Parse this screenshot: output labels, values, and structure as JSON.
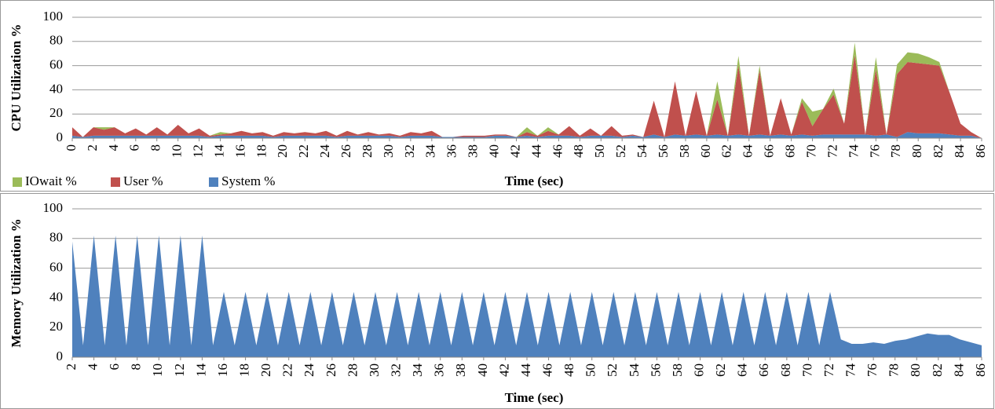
{
  "chart_data": [
    {
      "type": "area",
      "stacked": true,
      "y_label": "CPU Utilization %",
      "x_label": "Time (sec)",
      "legend": "bottom-left",
      "x": [
        0,
        1,
        2,
        3,
        4,
        5,
        6,
        7,
        8,
        9,
        10,
        11,
        12,
        13,
        14,
        15,
        16,
        17,
        18,
        19,
        20,
        21,
        22,
        23,
        24,
        25,
        26,
        27,
        28,
        29,
        30,
        31,
        32,
        33,
        34,
        35,
        36,
        37,
        38,
        39,
        40,
        41,
        42,
        43,
        44,
        45,
        46,
        47,
        48,
        49,
        50,
        51,
        52,
        53,
        54,
        55,
        56,
        57,
        58,
        59,
        60,
        61,
        62,
        63,
        64,
        65,
        66,
        67,
        68,
        69,
        70,
        71,
        72,
        73,
        74,
        75,
        76,
        77,
        78,
        79,
        80,
        81,
        82,
        83,
        84,
        85,
        86
      ],
      "series": [
        {
          "name": "System %",
          "color": "#4f81bd",
          "values": [
            2,
            1,
            2,
            2,
            2,
            2,
            2,
            2,
            2,
            2,
            2,
            2,
            2,
            1,
            2,
            2,
            2,
            2,
            2,
            1,
            2,
            2,
            2,
            2,
            2,
            1,
            2,
            2,
            2,
            2,
            2,
            1,
            2,
            2,
            2,
            1,
            1,
            1,
            1,
            1,
            2,
            2,
            1,
            2,
            1,
            2,
            2,
            2,
            1,
            2,
            2,
            2,
            1,
            2,
            1,
            3,
            1,
            3,
            2,
            3,
            2,
            3,
            2,
            3,
            2,
            3,
            2,
            3,
            2,
            3,
            2,
            3,
            3,
            3,
            3,
            3,
            2,
            3,
            1,
            5,
            4,
            4,
            4,
            3,
            2,
            2,
            0
          ]
        },
        {
          "name": "User %",
          "color": "#c0504d",
          "values": [
            7,
            0,
            7,
            5,
            7,
            2,
            6,
            1,
            7,
            1,
            9,
            2,
            6,
            1,
            1,
            2,
            4,
            2,
            3,
            1,
            3,
            2,
            3,
            2,
            4,
            1,
            4,
            1,
            3,
            1,
            2,
            1,
            3,
            2,
            4,
            0,
            0,
            1,
            1,
            1,
            1,
            1,
            0,
            3,
            1,
            4,
            1,
            8,
            1,
            6,
            0,
            8,
            1,
            1,
            0,
            28,
            0,
            44,
            0,
            36,
            0,
            29,
            0,
            57,
            0,
            53,
            0,
            30,
            1,
            27,
            8,
            21,
            33,
            9,
            66,
            0,
            55,
            0,
            52,
            58,
            58,
            57,
            56,
            34,
            10,
            3,
            0
          ]
        },
        {
          "name": "IOwait %",
          "color": "#9bbb59",
          "values": [
            0,
            0,
            0,
            2,
            0,
            0,
            0,
            0,
            0,
            0,
            0,
            0,
            0,
            0,
            2,
            0,
            0,
            0,
            0,
            0,
            0,
            0,
            0,
            0,
            0,
            0,
            0,
            0,
            0,
            0,
            0,
            0,
            0,
            0,
            0,
            0,
            0,
            0,
            0,
            0,
            0,
            0,
            0,
            4,
            0,
            3,
            0,
            0,
            0,
            0,
            0,
            0,
            0,
            0,
            0,
            0,
            0,
            0,
            0,
            0,
            0,
            15,
            0,
            8,
            0,
            4,
            0,
            0,
            0,
            3,
            12,
            0,
            5,
            0,
            10,
            0,
            10,
            0,
            8,
            8,
            8,
            6,
            3,
            0,
            0,
            0,
            0
          ]
        }
      ],
      "xlim": [
        0,
        86
      ],
      "xticks": [
        0,
        2,
        4,
        6,
        8,
        10,
        12,
        14,
        16,
        18,
        20,
        22,
        24,
        26,
        28,
        30,
        32,
        34,
        36,
        38,
        40,
        42,
        44,
        46,
        48,
        50,
        52,
        54,
        56,
        58,
        60,
        62,
        64,
        66,
        68,
        70,
        72,
        74,
        76,
        78,
        80,
        82,
        84,
        86
      ],
      "ylim": [
        0,
        100
      ],
      "yticks": [
        0,
        20,
        40,
        60,
        80,
        100
      ],
      "grid": true
    },
    {
      "type": "area",
      "y_label": "Memory Utilization %",
      "x_label": "Time (sec)",
      "x": [
        2,
        3,
        4,
        5,
        6,
        7,
        8,
        9,
        10,
        11,
        12,
        13,
        14,
        15,
        16,
        17,
        18,
        19,
        20,
        21,
        22,
        23,
        24,
        25,
        26,
        27,
        28,
        29,
        30,
        31,
        32,
        33,
        34,
        35,
        36,
        37,
        38,
        39,
        40,
        41,
        42,
        43,
        44,
        45,
        46,
        47,
        48,
        49,
        50,
        51,
        52,
        53,
        54,
        55,
        56,
        57,
        58,
        59,
        60,
        61,
        62,
        63,
        64,
        65,
        66,
        67,
        68,
        69,
        70,
        71,
        72,
        73,
        74,
        75,
        76,
        77,
        78,
        79,
        80,
        81,
        82,
        83,
        84,
        85,
        86
      ],
      "series": [
        {
          "color": "#4f81bd",
          "values": [
            78,
            8,
            82,
            8,
            82,
            8,
            82,
            8,
            82,
            8,
            82,
            8,
            82,
            8,
            44,
            8,
            44,
            8,
            44,
            8,
            44,
            8,
            44,
            8,
            44,
            8,
            44,
            8,
            44,
            8,
            44,
            8,
            44,
            8,
            44,
            8,
            44,
            8,
            44,
            8,
            44,
            8,
            44,
            8,
            44,
            8,
            44,
            8,
            44,
            8,
            44,
            8,
            44,
            8,
            44,
            8,
            44,
            8,
            44,
            8,
            44,
            8,
            44,
            8,
            44,
            8,
            44,
            8,
            44,
            8,
            44,
            12,
            9,
            9,
            10,
            9,
            11,
            12,
            14,
            16,
            15,
            15,
            12,
            10,
            8
          ]
        }
      ],
      "xlim": [
        2,
        86
      ],
      "xticks": [
        2,
        4,
        6,
        8,
        10,
        12,
        14,
        16,
        18,
        20,
        22,
        24,
        26,
        28,
        30,
        32,
        34,
        36,
        38,
        40,
        42,
        44,
        46,
        48,
        50,
        52,
        54,
        56,
        58,
        60,
        62,
        64,
        66,
        68,
        70,
        72,
        74,
        76,
        78,
        80,
        82,
        84,
        86
      ],
      "ylim": [
        0,
        100
      ],
      "yticks": [
        0,
        20,
        40,
        60,
        80,
        100
      ],
      "grid": true
    }
  ]
}
